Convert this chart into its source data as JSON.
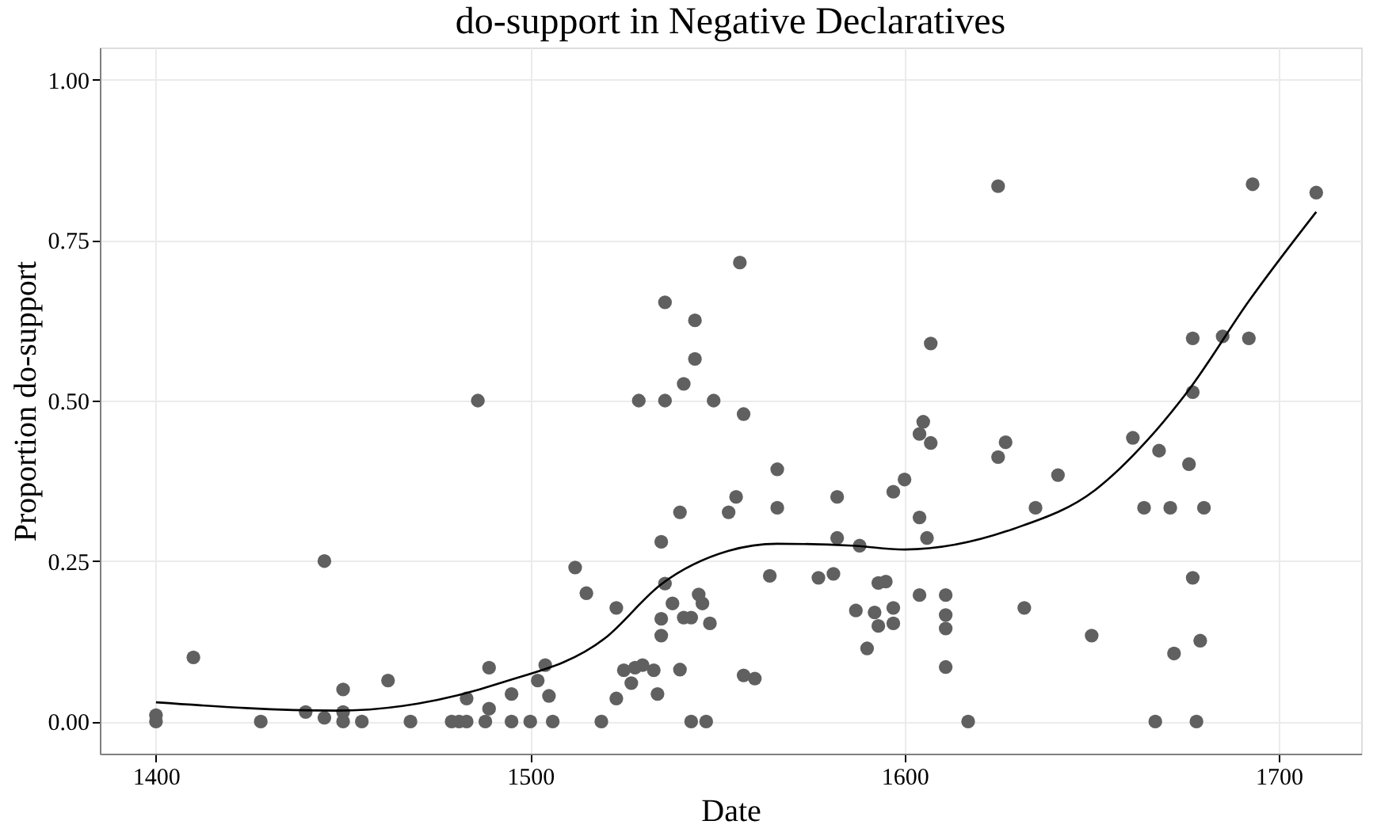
{
  "chart_data": {
    "type": "scatter",
    "title": "do-support in Negative Declaratives",
    "xlabel": "Date",
    "ylabel": "Proportion do-support",
    "xlim": [
      1385,
      1722
    ],
    "xticks": [
      1400,
      1500,
      1600,
      1700
    ],
    "ylim": [
      -0.05,
      1.05
    ],
    "yticks": [
      {
        "value": 0,
        "label": "0.00"
      },
      {
        "value": 0.25,
        "label": "0.25"
      },
      {
        "value": 0.5,
        "label": "0.50"
      },
      {
        "value": 0.75,
        "label": "0.75"
      },
      {
        "value": 1,
        "label": "1.00"
      }
    ],
    "grid": true,
    "series": [
      {
        "color": "#606060",
        "marker": "circle",
        "x": [
          1400,
          1400,
          1410,
          1428,
          1440,
          1445,
          1445,
          1450,
          1450,
          1450,
          1455,
          1462,
          1468,
          1479,
          1481,
          1483,
          1483,
          1486,
          1488,
          1489,
          1489,
          1495,
          1495,
          1500,
          1502,
          1504,
          1505,
          1506,
          1512,
          1515,
          1519,
          1523,
          1523,
          1525,
          1527,
          1528,
          1529,
          1530,
          1533,
          1534,
          1535,
          1535,
          1535,
          1536,
          1536,
          1536,
          1538,
          1540,
          1540,
          1541,
          1541,
          1543,
          1543,
          1544,
          1544,
          1545,
          1546,
          1547,
          1548,
          1549,
          1553,
          1555,
          1556,
          1557,
          1557,
          1560,
          1564,
          1566,
          1566,
          1577,
          1581,
          1582,
          1582,
          1587,
          1588,
          1590,
          1592,
          1593,
          1593,
          1595,
          1597,
          1597,
          1597,
          1600,
          1604,
          1605,
          1607,
          1607,
          1604,
          1606,
          1604,
          1611,
          1611,
          1611,
          1611,
          1617,
          1625,
          1625,
          1627,
          1632,
          1635,
          1641,
          1650,
          1661,
          1664,
          1667,
          1668,
          1671,
          1672,
          1676,
          1677,
          1677,
          1677,
          1678,
          1679,
          1680,
          1685,
          1692,
          1693,
          1710
        ],
        "values": [
          0.0,
          0.01,
          0.1,
          0.0,
          0.015,
          0.25,
          0.006,
          0.05,
          0.015,
          0.0,
          0.0,
          0.064,
          0.0,
          0.0,
          0.0,
          0.0,
          0.036,
          0.5,
          0.0,
          0.02,
          0.084,
          0.043,
          0.0,
          0.0,
          0.064,
          0.088,
          0.04,
          0.0,
          0.24,
          0.2,
          0.0,
          0.177,
          0.036,
          0.08,
          0.06,
          0.084,
          0.5,
          0.088,
          0.08,
          0.043,
          0.28,
          0.16,
          0.134,
          0.653,
          0.5,
          0.215,
          0.184,
          0.326,
          0.081,
          0.526,
          0.162,
          0.162,
          0.0,
          0.625,
          0.565,
          0.198,
          0.184,
          0.0,
          0.153,
          0.5,
          0.326,
          0.35,
          0.715,
          0.479,
          0.072,
          0.067,
          0.227,
          0.393,
          0.333,
          0.224,
          0.23,
          0.35,
          0.286,
          0.173,
          0.274,
          0.114,
          0.17,
          0.216,
          0.149,
          0.218,
          0.358,
          0.177,
          0.153,
          0.377,
          0.448,
          0.467,
          0.434,
          0.589,
          0.318,
          0.286,
          0.197,
          0.197,
          0.166,
          0.145,
          0.085,
          0.0,
          0.834,
          0.412,
          0.435,
          0.177,
          0.333,
          0.384,
          0.134,
          0.442,
          0.333,
          0.0,
          0.422,
          0.333,
          0.106,
          0.401,
          0.597,
          0.513,
          0.224,
          0.0,
          0.126,
          0.333,
          0.6,
          0.597,
          0.837,
          0.824
        ]
      },
      {
        "type": "line",
        "color": "#000000",
        "x": [
          1400,
          1448,
          1470,
          1492,
          1520,
          1535,
          1553,
          1566,
          1586,
          1600,
          1629,
          1651,
          1665,
          1676,
          1692,
          1710
        ],
        "values": [
          0.03,
          0.017,
          0.028,
          0.06,
          0.13,
          0.214,
          0.266,
          0.277,
          0.274,
          0.268,
          0.3,
          0.361,
          0.439,
          0.517,
          0.655,
          0.794
        ]
      }
    ]
  }
}
